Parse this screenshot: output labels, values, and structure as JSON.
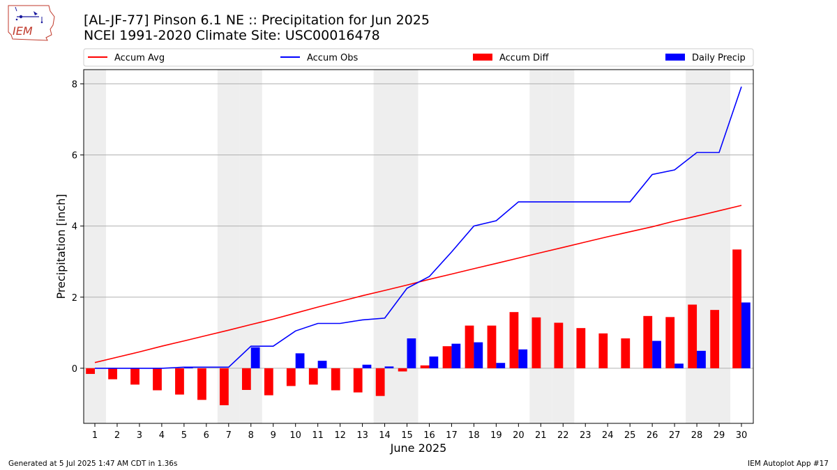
{
  "header": {
    "title_line1": "[AL-JF-77] Pinson 6.1 NE :: Precipitation for Jun 2025",
    "title_line2": "NCEI 1991-2020 Climate Site: USC00016478",
    "logo_text": "IEM"
  },
  "footer": {
    "generated": "Generated at 5 Jul 2025 1:47 AM CDT in 1.36s",
    "app": "IEM Autoplot App #17"
  },
  "colors": {
    "accum_avg": "#ff0000",
    "accum_obs": "#0000ff",
    "accum_diff": "#ff0000",
    "daily_precip": "#0000ff",
    "weekend_shade": "#eeeeee",
    "grid": "#b0b0b0"
  },
  "chart_data": {
    "type": "bar",
    "title": "",
    "xlabel": "June 2025",
    "ylabel": "Precipitation [inch]",
    "ylim": [
      -1.55,
      8.4
    ],
    "yticks": [
      0,
      2,
      4,
      6,
      8
    ],
    "grid": "horizontal",
    "legend_position": "top",
    "categories": [
      "1",
      "2",
      "3",
      "4",
      "5",
      "6",
      "7",
      "8",
      "9",
      "10",
      "11",
      "12",
      "13",
      "14",
      "15",
      "16",
      "17",
      "18",
      "19",
      "20",
      "21",
      "22",
      "23",
      "24",
      "25",
      "26",
      "27",
      "28",
      "29",
      "30"
    ],
    "shaded_days": [
      1,
      7,
      8,
      14,
      15,
      21,
      22,
      28,
      29
    ],
    "series": [
      {
        "name": "Accum Avg",
        "kind": "line",
        "color": "#ff0000",
        "values": [
          0.16,
          0.31,
          0.46,
          0.62,
          0.77,
          0.92,
          1.07,
          1.23,
          1.38,
          1.55,
          1.72,
          1.88,
          2.04,
          2.19,
          2.34,
          2.5,
          2.65,
          2.8,
          2.95,
          3.1,
          3.25,
          3.4,
          3.55,
          3.7,
          3.84,
          3.98,
          4.14,
          4.28,
          4.43,
          4.58
        ]
      },
      {
        "name": "Accum Obs",
        "kind": "line",
        "color": "#0000ff",
        "values": [
          0.0,
          0.0,
          0.0,
          0.0,
          0.03,
          0.03,
          0.03,
          0.62,
          0.62,
          1.05,
          1.26,
          1.26,
          1.36,
          1.41,
          2.25,
          2.58,
          3.27,
          4.0,
          4.15,
          4.68,
          4.68,
          4.68,
          4.68,
          4.68,
          4.68,
          5.45,
          5.58,
          6.07,
          6.07,
          7.92
        ]
      },
      {
        "name": "Accum Diff",
        "kind": "bar",
        "color": "#ff0000",
        "values": [
          -0.16,
          -0.31,
          -0.46,
          -0.62,
          -0.74,
          -0.89,
          -1.04,
          -0.61,
          -0.76,
          -0.5,
          -0.46,
          -0.62,
          -0.68,
          -0.78,
          -0.09,
          0.08,
          0.62,
          1.2,
          1.2,
          1.58,
          1.43,
          1.28,
          1.13,
          0.98,
          0.84,
          1.47,
          1.44,
          1.79,
          1.64,
          3.34
        ]
      },
      {
        "name": "Daily Precip",
        "kind": "bar",
        "color": "#0000ff",
        "values": [
          0,
          0,
          0,
          0,
          0.03,
          0,
          0,
          0.59,
          0,
          0.42,
          0.21,
          0,
          0.1,
          0.05,
          0.84,
          0.33,
          0.69,
          0.73,
          0.15,
          0.53,
          0,
          0,
          0,
          0,
          0,
          0.77,
          0.13,
          0.49,
          0,
          1.85
        ]
      }
    ]
  }
}
